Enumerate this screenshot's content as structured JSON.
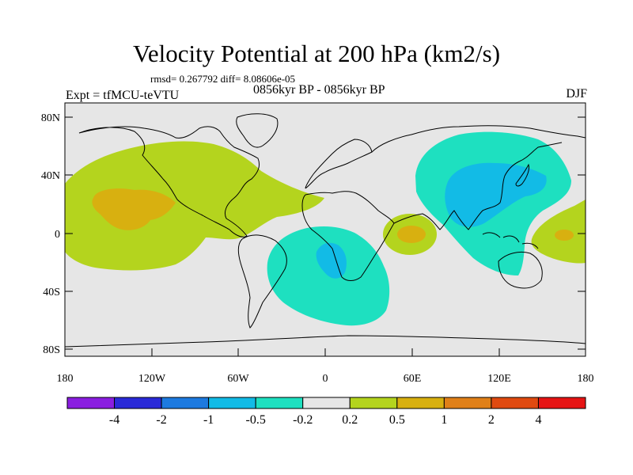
{
  "title": "Velocity Potential at 200 hPa (km2/s)",
  "stats": "rmsd= 0.267792  diff= 8.08606e-05",
  "experiment": "Expt = tfMCU-teVTU",
  "period": "0856kyr BP - 0856kyr BP",
  "season": "DJF",
  "axes": {
    "lat_labels": [
      "80N",
      "40N",
      "0",
      "40S",
      "80S"
    ],
    "lon_labels": [
      "180",
      "120W",
      "60W",
      "0",
      "60E",
      "120E",
      "180"
    ]
  },
  "colorbar": {
    "labels": [
      "-4",
      "-2",
      "-1",
      "-0.5",
      "-0.2",
      "0.2",
      "0.5",
      "1",
      "2",
      "4"
    ],
    "colors": [
      "#8a1ee0",
      "#2a2ad8",
      "#1d7ae0",
      "#12bbe6",
      "#1ee0c0",
      "#e6e6e6",
      "#b4d41e",
      "#d8b010",
      "#e08018",
      "#e04a10",
      "#e61414"
    ]
  },
  "colors": {
    "ocean": "#e6e6e6",
    "coast": "#000000"
  }
}
